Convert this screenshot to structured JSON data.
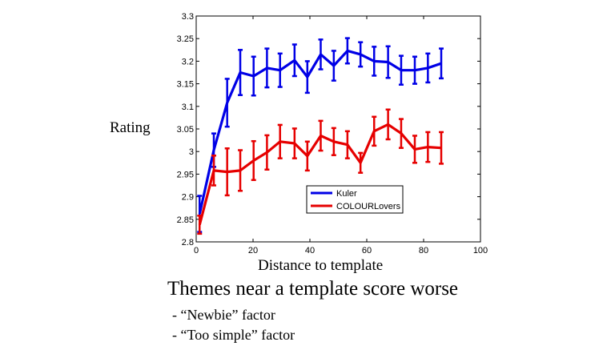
{
  "chart_data": {
    "type": "line",
    "title": "",
    "xlabel": "Distance to template",
    "ylabel": "Rating",
    "xlim": [
      0,
      100
    ],
    "ylim": [
      2.8,
      3.3
    ],
    "xticks": [
      0,
      20,
      40,
      60,
      80,
      100
    ],
    "yticks": [
      2.8,
      2.85,
      2.9,
      2.95,
      3,
      3.05,
      3.1,
      3.15,
      3.2,
      3.25,
      3.3
    ],
    "grid": false,
    "legend_position": "lower-right",
    "x": [
      1.2,
      6.2,
      10.9,
      15.5,
      20.2,
      24.9,
      29.5,
      34.6,
      39.1,
      43.8,
      48.4,
      53.2,
      57.8,
      62.6,
      67.5,
      72.1,
      76.9,
      81.5,
      86.2
    ],
    "series": [
      {
        "name": "Kuler",
        "color": "#0000e6",
        "values": [
          2.862,
          3.003,
          3.108,
          3.175,
          3.167,
          3.185,
          3.18,
          3.202,
          3.165,
          3.215,
          3.19,
          3.223,
          3.215,
          3.2,
          3.198,
          3.18,
          3.18,
          3.185,
          3.195
        ],
        "error": [
          0.04,
          0.037,
          0.053,
          0.05,
          0.043,
          0.043,
          0.037,
          0.035,
          0.035,
          0.033,
          0.033,
          0.028,
          0.027,
          0.032,
          0.035,
          0.032,
          0.03,
          0.032,
          0.033
        ]
      },
      {
        "name": "COLOURLovers",
        "color": "#e60000",
        "values": [
          2.838,
          2.958,
          2.955,
          2.958,
          2.98,
          2.998,
          3.022,
          3.018,
          2.99,
          3.035,
          3.022,
          3.015,
          2.975,
          3.045,
          3.06,
          3.04,
          3.005,
          3.01,
          3.008
        ],
        "error": [
          0.02,
          0.033,
          0.052,
          0.045,
          0.043,
          0.038,
          0.037,
          0.033,
          0.032,
          0.033,
          0.03,
          0.03,
          0.022,
          0.032,
          0.033,
          0.032,
          0.03,
          0.033,
          0.035
        ]
      }
    ]
  },
  "caption": "Themes near a template score worse",
  "bullets": [
    "- “Newbie” factor",
    "- “Too simple” factor"
  ]
}
